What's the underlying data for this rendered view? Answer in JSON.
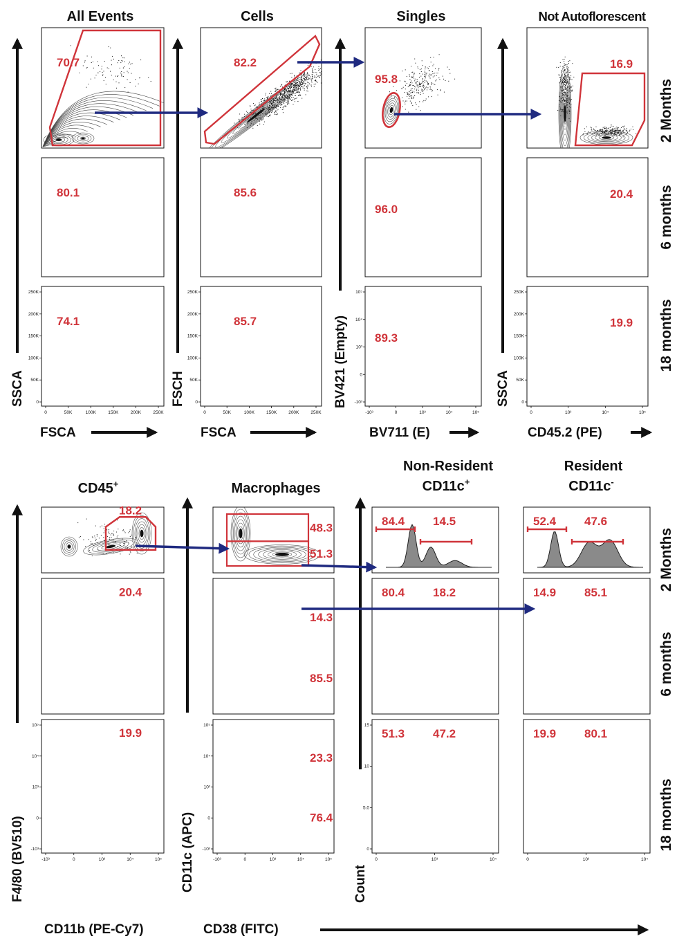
{
  "top": {
    "titles": {
      "all_events": "All Events",
      "cells": "Cells",
      "singles": "Singles",
      "not_autofluorescent": "Not Autoflorescent"
    },
    "row_labels": [
      "2 Months",
      "6 months",
      "18 months"
    ],
    "axes": {
      "col1_x": "FSCA",
      "col1_y": "SSCA",
      "col2_x": "FSCA",
      "col2_y": "FSCH",
      "col3_x": "BV711 (E)",
      "col3_y": "BV421 (Empty)",
      "col4_x": "CD45.2 (PE)",
      "col4_y": "SSCA"
    },
    "gates": {
      "all_events": [
        "70.7",
        "80.1",
        "74.1"
      ],
      "cells": [
        "82.2",
        "85.6",
        "85.7"
      ],
      "singles": [
        "95.8",
        "96.0",
        "89.3"
      ],
      "not_autofluorescent": [
        "16.9",
        "20.4",
        "19.9"
      ]
    },
    "ticks": {
      "linear_x": [
        "0",
        "50K",
        "100K",
        "150K",
        "200K",
        "250K"
      ],
      "linear_y": [
        "250K",
        "200K",
        "150K",
        "100K",
        "50K",
        "0"
      ],
      "log_x_singles": [
        "-10³",
        "0",
        "10³",
        "10⁴",
        "10⁵"
      ],
      "log_y_singles": [
        "10⁵",
        "10⁴",
        "10³",
        "0",
        "-10³"
      ],
      "log_x_cd45": [
        "0",
        "10³",
        "10⁴",
        "10⁵"
      ]
    }
  },
  "bottom": {
    "titles": {
      "cd45": "CD45",
      "cd45_sup": "+",
      "macrophages": "Macrophages",
      "nonresident_line1": "Non-Resident",
      "nonresident_line2": "CD11c",
      "nonresident_sup": "+",
      "resident_line1": "Resident",
      "resident_line2": "CD11c",
      "resident_sup": "-"
    },
    "row_labels": [
      "2 Months",
      "6 months",
      "18 months"
    ],
    "axes": {
      "col1_x": "CD11b (PE-Cy7)",
      "col1_y": "F4/80 (BV510)",
      "col2_x": "CD38 (FITC)",
      "col2_y": "CD11c (APC)",
      "hist_y": "Count"
    },
    "gates": {
      "cd45": [
        "18.2",
        "20.4",
        "19.9"
      ],
      "mac_upper": [
        "48.3",
        "14.3",
        "23.3"
      ],
      "mac_lower": [
        "51.3",
        "85.5",
        "76.4"
      ],
      "nonres_left": [
        "84.4",
        "80.4",
        "51.3"
      ],
      "nonres_right": [
        "14.5",
        "18.2",
        "47.2"
      ],
      "res_left": [
        "52.4",
        "14.9",
        "19.9"
      ],
      "res_right": [
        "47.6",
        "85.1",
        "80.1"
      ]
    },
    "ticks": {
      "log_x": [
        "-10³",
        "0",
        "10³",
        "10⁴",
        "10⁵"
      ],
      "log_y": [
        "10⁵",
        "10⁴",
        "10³",
        "0",
        "-10³"
      ],
      "hist_y": [
        "15",
        "10",
        "5.0",
        "0"
      ],
      "hist_x": [
        "0",
        "10³",
        "10⁴"
      ]
    }
  },
  "colors": {
    "gate": "#d0343a",
    "arrow": "#1f2a80",
    "axis": "#111111"
  }
}
